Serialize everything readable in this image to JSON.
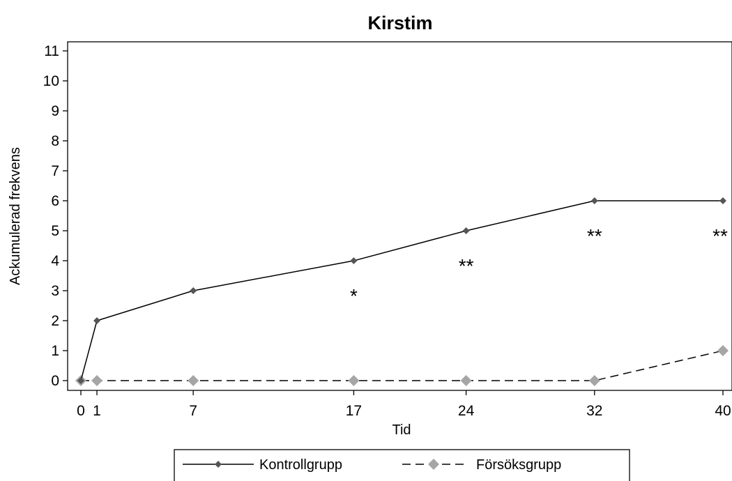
{
  "chart_data": {
    "type": "line",
    "title": "Kirstim",
    "xlabel": "Tid",
    "ylabel": "Ackumulerad frekvens",
    "x": [
      0,
      1,
      7,
      17,
      24,
      32,
      40
    ],
    "x_ticks": [
      "0",
      "1",
      "7",
      "17",
      "24",
      "32",
      "40"
    ],
    "y_ticks": [
      "0",
      "1",
      "2",
      "3",
      "4",
      "5",
      "6",
      "7",
      "8",
      "9",
      "10",
      "11"
    ],
    "xlim": [
      -0.5,
      40.5
    ],
    "ylim": [
      -0.3,
      11.5
    ],
    "grid": false,
    "legend_position": "bottom",
    "series": [
      {
        "name": "Kontrollgrupp",
        "values": [
          0,
          2,
          3,
          4,
          5,
          6,
          6
        ],
        "color": "#555555",
        "line": "solid",
        "marker": "diamond-small"
      },
      {
        "name": "Försöksgrupp",
        "values": [
          0,
          0,
          0,
          0,
          0,
          0,
          1
        ],
        "color": "#a6a6a6",
        "line": "dashed",
        "marker": "diamond-large"
      }
    ],
    "annotations": [
      {
        "x": 17,
        "y": 4,
        "text": "*"
      },
      {
        "x": 24,
        "y": 5,
        "text": "**"
      },
      {
        "x": 32,
        "y": 6,
        "text": "**"
      },
      {
        "x": 40,
        "y": 6,
        "text": "**"
      }
    ]
  }
}
